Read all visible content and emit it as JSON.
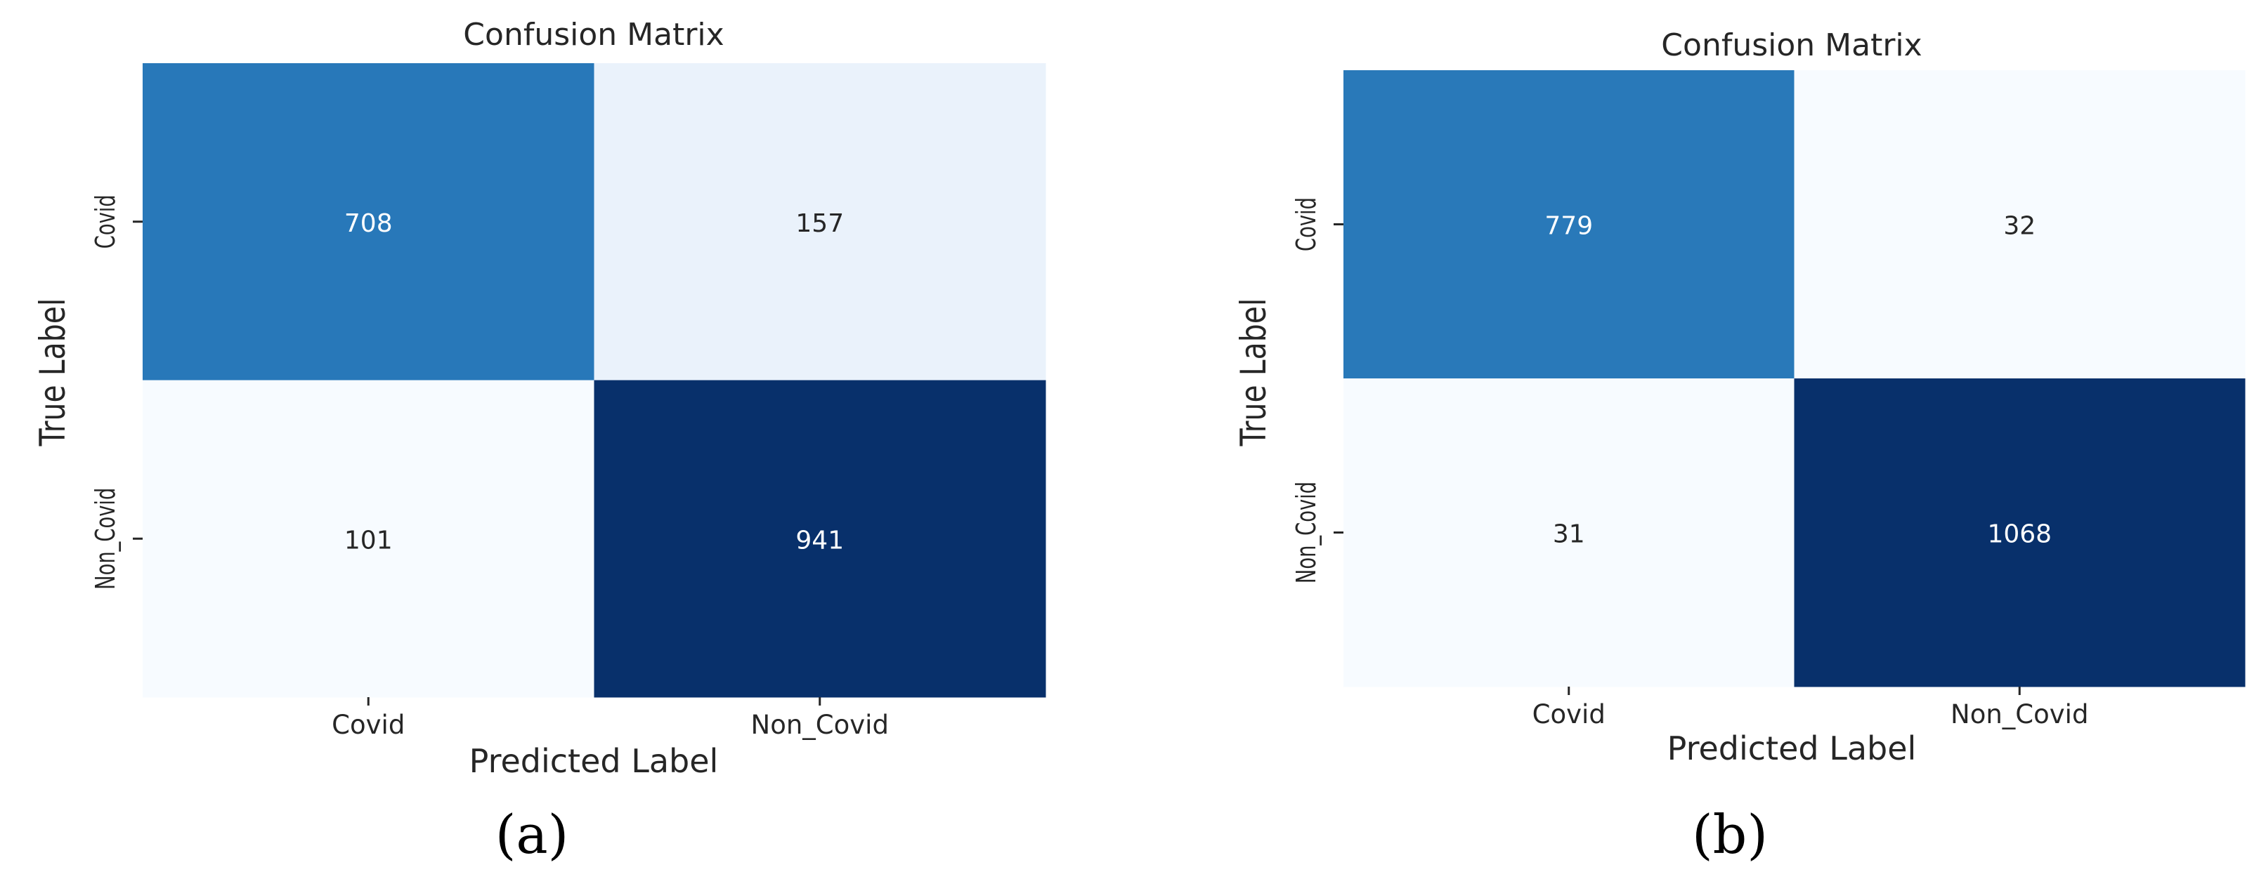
{
  "figure": {
    "panels": [
      {
        "label": "(a)"
      },
      {
        "label": "(b)"
      }
    ]
  },
  "colors": {
    "cmap_light": "#f7fbff",
    "cmap_dark": "#08306b",
    "text_light": "#ffffff",
    "text_dark": "#262626",
    "axis_text": "#262626"
  },
  "chart_data": [
    {
      "type": "heatmap",
      "title": "Confusion Matrix",
      "xlabel": "Predicted Label",
      "ylabel": "True Label",
      "x_categories": [
        "Covid",
        "Non_Covid"
      ],
      "y_categories": [
        "Covid",
        "Non_Covid"
      ],
      "values": [
        [
          708,
          157
        ],
        [
          101,
          941
        ]
      ],
      "colormap": "Blues",
      "colorbar": false,
      "grid": false
    },
    {
      "type": "heatmap",
      "title": "Confusion Matrix",
      "xlabel": "Predicted Label",
      "ylabel": "True Label",
      "x_categories": [
        "Covid",
        "Non_Covid"
      ],
      "y_categories": [
        "Covid",
        "Non_Covid"
      ],
      "values": [
        [
          779,
          32
        ],
        [
          31,
          1068
        ]
      ],
      "colormap": "Blues",
      "colorbar": false,
      "grid": false
    }
  ]
}
